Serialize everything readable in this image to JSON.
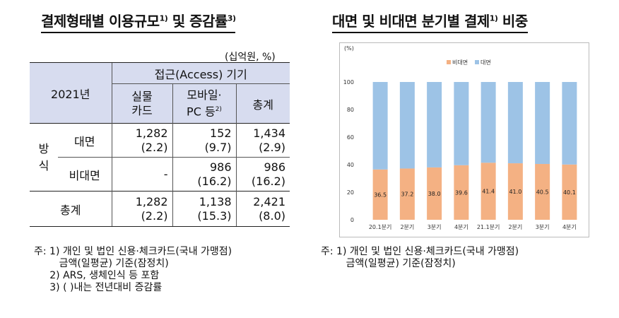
{
  "left_panel": {
    "title_main": "결제형태별 이용규모",
    "title_mid": " 및 증감률",
    "title_sup1": "1)",
    "title_sup2": "3)",
    "unit": "(십억원, %)",
    "table": {
      "year": "2021년",
      "access_header": "접근(Access) 기기",
      "col_physical": "실물\n카드",
      "col_mobile": "모바일·\nPC 등",
      "col_mobile_sup": "2)",
      "col_total": "총계",
      "group_label": "방\n식",
      "rows": [
        {
          "label": "대면",
          "physical": "1,282",
          "physical_pct": "(2.2)",
          "mobile": "152",
          "mobile_pct": "(9.7)",
          "total": "1,434",
          "total_pct": "(2.9)"
        },
        {
          "label": "비대면",
          "physical": "-",
          "physical_pct": "",
          "mobile": "986",
          "mobile_pct": "(16.2)",
          "total": "986",
          "total_pct": "(16.2)"
        },
        {
          "label": "총계",
          "physical": "1,282",
          "physical_pct": "(2.2)",
          "mobile": "1,138",
          "mobile_pct": "(15.3)",
          "total": "2,421",
          "total_pct": "(8.0)"
        }
      ]
    },
    "notes": [
      "주: 1) 개인 및 법인 신용·체크카드(국내 가맹점)",
      "        금액(일평균) 기준(잠정치)",
      "     2) ARS, 생체인식 등 포함",
      "     3) ( )내는 전년대비 증감률"
    ]
  },
  "right_panel": {
    "title_main": "대면 및 비대면 분기별 결제",
    "title_sup": "1)",
    "title_tail": " 비중",
    "notes": [
      "주: 1) 개인 및 법인 신용·체크카드(국내 가맹점)",
      "        금액(일평균) 기준(잠정치)"
    ]
  },
  "chart_data": {
    "type": "bar",
    "stacked": true,
    "unit_label": "(%)",
    "categories": [
      "20.1분기",
      "2분기",
      "3분기",
      "4분기",
      "21.1분기",
      "2분기",
      "3분기",
      "4분기"
    ],
    "series": [
      {
        "name": "비대면",
        "color": "#f4b183",
        "values": [
          36.5,
          37.2,
          38.0,
          39.6,
          41.4,
          41.0,
          40.5,
          40.1
        ],
        "labels": [
          "36.5",
          "37.2",
          "38.0",
          "39.6",
          "41.4",
          "41.0",
          "40.5",
          "40.1"
        ]
      },
      {
        "name": "대면",
        "color": "#9dc3e6",
        "values": [
          63.5,
          62.8,
          62.0,
          60.4,
          58.6,
          59.0,
          59.5,
          59.9
        ]
      }
    ],
    "ylim": [
      0,
      100
    ],
    "yticks": [
      "0",
      "20",
      "40",
      "60",
      "80",
      "100"
    ],
    "legend_position": "top-center",
    "grid": false
  }
}
